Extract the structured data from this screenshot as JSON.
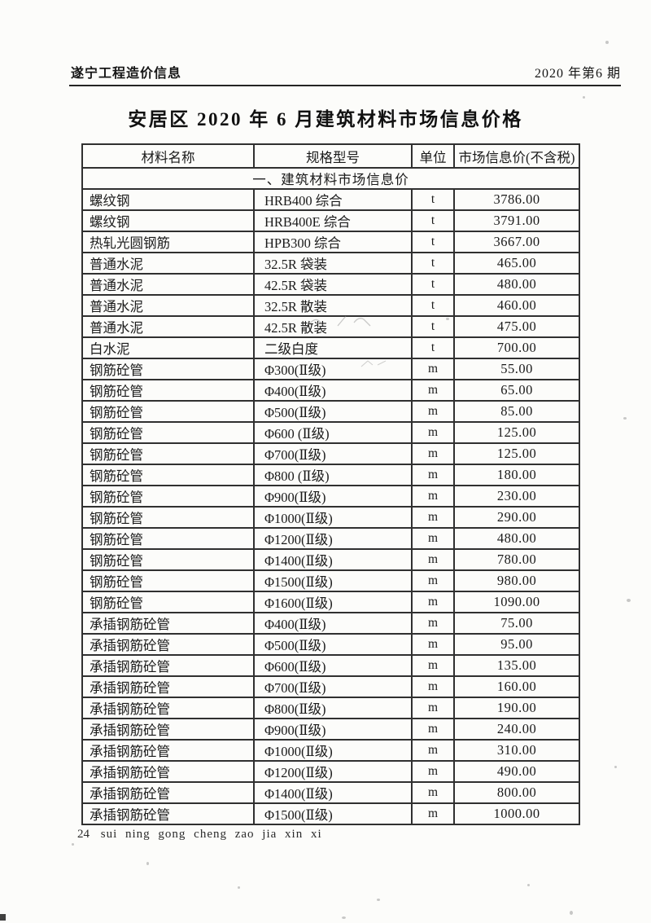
{
  "page": {
    "journal_title": "遂宁工程造价信息",
    "issue": "2020 年第6 期",
    "title": "安居区 2020 年 6 月建筑材料市场信息价格",
    "page_number": "24",
    "footer_text": "sui ning gong cheng zao jia xin xi"
  },
  "table": {
    "columns": [
      "材料名称",
      "规格型号",
      "单位",
      "市场信息价(不含税)"
    ],
    "section_header": "一、建筑材料市场信息价",
    "rows": [
      [
        "螺纹钢",
        "HRB400 综合",
        "t",
        "3786.00"
      ],
      [
        "螺纹钢",
        "HRB400E 综合",
        "t",
        "3791.00"
      ],
      [
        "热轧光圆钢筋",
        "HPB300 综合",
        "t",
        "3667.00"
      ],
      [
        "普通水泥",
        "32.5R 袋装",
        "t",
        "465.00"
      ],
      [
        "普通水泥",
        "42.5R 袋装",
        "t",
        "480.00"
      ],
      [
        "普通水泥",
        "32.5R 散装",
        "t",
        "460.00"
      ],
      [
        "普通水泥",
        "42.5R 散装",
        "t",
        "475.00"
      ],
      [
        "白水泥",
        "二级白度",
        "t",
        "700.00"
      ],
      [
        "钢筋砼管",
        "Φ300(Ⅱ级)",
        "m",
        "55.00"
      ],
      [
        "钢筋砼管",
        "Φ400(Ⅱ级)",
        "m",
        "65.00"
      ],
      [
        "钢筋砼管",
        "Φ500(Ⅱ级)",
        "m",
        "85.00"
      ],
      [
        "钢筋砼管",
        "Φ600 (Ⅱ级)",
        "m",
        "125.00"
      ],
      [
        "钢筋砼管",
        "Φ700(Ⅱ级)",
        "m",
        "125.00"
      ],
      [
        "钢筋砼管",
        "Φ800 (Ⅱ级)",
        "m",
        "180.00"
      ],
      [
        "钢筋砼管",
        "Φ900(Ⅱ级)",
        "m",
        "230.00"
      ],
      [
        "钢筋砼管",
        "Φ1000(Ⅱ级)",
        "m",
        "290.00"
      ],
      [
        "钢筋砼管",
        "Φ1200(Ⅱ级)",
        "m",
        "480.00"
      ],
      [
        "钢筋砼管",
        "Φ1400(Ⅱ级)",
        "m",
        "780.00"
      ],
      [
        "钢筋砼管",
        "Φ1500(Ⅱ级)",
        "m",
        "980.00"
      ],
      [
        "钢筋砼管",
        "Φ1600(Ⅱ级)",
        "m",
        "1090.00"
      ],
      [
        "承插钢筋砼管",
        "Φ400(Ⅱ级)",
        "m",
        "75.00"
      ],
      [
        "承插钢筋砼管",
        "Φ500(Ⅱ级)",
        "m",
        "95.00"
      ],
      [
        "承插钢筋砼管",
        "Φ600(Ⅱ级)",
        "m",
        "135.00"
      ],
      [
        "承插钢筋砼管",
        "Φ700(Ⅱ级)",
        "m",
        "160.00"
      ],
      [
        "承插钢筋砼管",
        "Φ800(Ⅱ级)",
        "m",
        "190.00"
      ],
      [
        "承插钢筋砼管",
        "Φ900(Ⅱ级)",
        "m",
        "240.00"
      ],
      [
        "承插钢筋砼管",
        "Φ1000(Ⅱ级)",
        "m",
        "310.00"
      ],
      [
        "承插钢筋砼管",
        "Φ1200(Ⅱ级)",
        "m",
        "490.00"
      ],
      [
        "承插钢筋砼管",
        "Φ1400(Ⅱ级)",
        "m",
        "800.00"
      ],
      [
        "承插钢筋砼管",
        "Φ1500(Ⅱ级)",
        "m",
        "1000.00"
      ]
    ]
  }
}
